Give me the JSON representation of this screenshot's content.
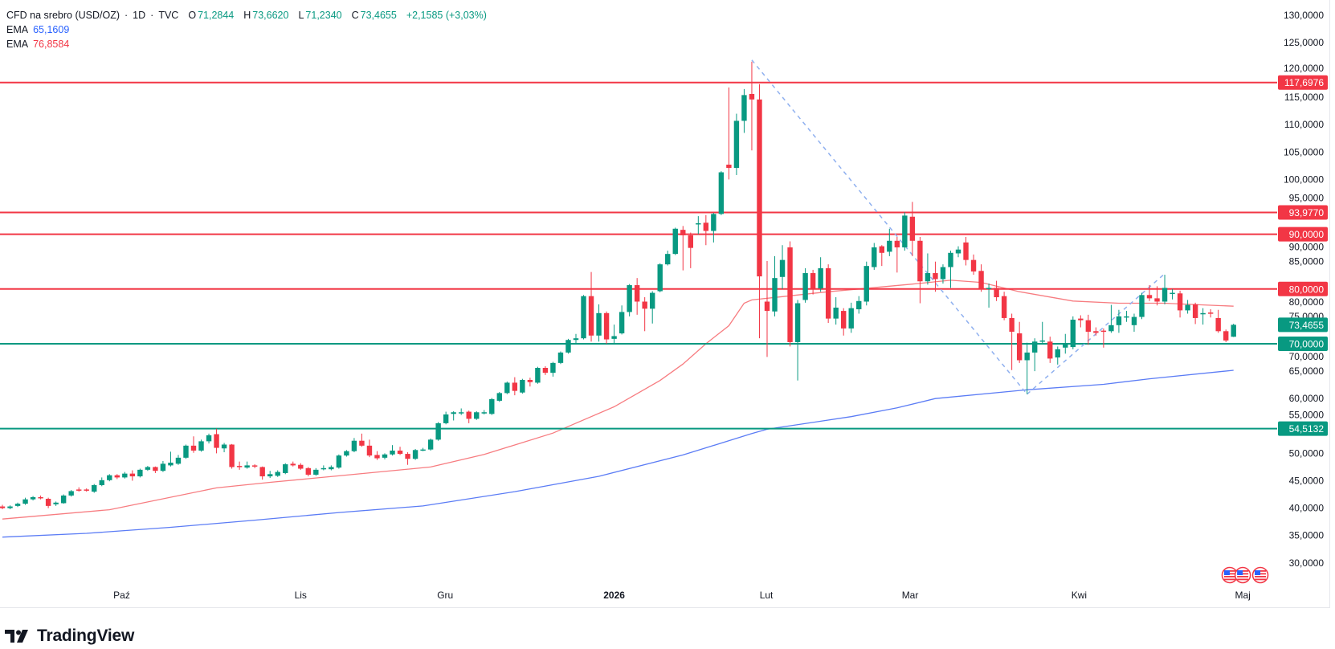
{
  "header": {
    "symbol": "CFD na srebro (USD/OZ)",
    "separator": "·",
    "interval": "1D",
    "exchange": "TVC",
    "ohlc": {
      "o_label": "O",
      "o": "71,2844",
      "h_label": "H",
      "h": "73,6620",
      "l_label": "L",
      "l": "71,2340",
      "c_label": "C",
      "c": "73,4655"
    },
    "change": "+2,1585 (+3,03%)"
  },
  "indicators": [
    {
      "name": "EMA",
      "value": "65,1609",
      "color": "#2962ff"
    },
    {
      "name": "EMA",
      "value": "76,8584",
      "color": "#f23645"
    }
  ],
  "branding": {
    "logo_text": "TradingView"
  },
  "chart_data": {
    "type": "candlestick",
    "title": "CFD na srebro (USD/OZ) · 1D · TVC",
    "colors": {
      "up": "#089981",
      "down": "#f23645",
      "ema_short": "#f77c80",
      "ema_long": "#5b7cf5",
      "trendline": "#8fb0ef",
      "resistance": "#f23645",
      "support": "#089981"
    },
    "y_axis": {
      "min": 30,
      "max": 130,
      "step": 5,
      "position": "right",
      "tick_values": [
        130,
        125,
        120,
        115,
        110,
        105,
        100,
        95,
        90,
        85,
        80,
        75,
        70,
        65,
        60,
        55,
        50,
        45,
        40,
        35,
        30
      ],
      "tick_labels": [
        "130,0000",
        "125,0000",
        "120,0000",
        "115,0000",
        "110,0000",
        "105,0000",
        "100,0000",
        "95,0000",
        "90,0000",
        "85,0000",
        "80,0000",
        "75,0000",
        "70,0000",
        "65,0000",
        "60,0000",
        "55,0000",
        "50,0000",
        "45,0000",
        "40,0000",
        "35,0000",
        "30,0000"
      ]
    },
    "x_axis": {
      "labels": [
        {
          "text": "Paź",
          "bar": 15.6,
          "bold": false
        },
        {
          "text": "Lis",
          "bar": 39,
          "bold": false
        },
        {
          "text": "Gru",
          "bar": 57.9,
          "bold": false
        },
        {
          "text": "2026",
          "bar": 80,
          "bold": true
        },
        {
          "text": "Lut",
          "bar": 99.9,
          "bold": false
        },
        {
          "text": "Mar",
          "bar": 118.7,
          "bold": false
        },
        {
          "text": "Kwi",
          "bar": 140.8,
          "bold": false
        },
        {
          "text": "Maj",
          "bar": 162.2,
          "bold": false
        }
      ]
    },
    "candles_ohlc": [
      [
        40.3,
        40.6,
        39.8,
        40.0
      ],
      [
        40.0,
        40.5,
        39.8,
        40.3
      ],
      [
        40.4,
        41.0,
        40.2,
        40.8
      ],
      [
        40.8,
        41.9,
        40.6,
        41.6
      ],
      [
        41.6,
        42.2,
        41.4,
        42.0
      ],
      [
        42.0,
        42.3,
        41.6,
        41.9
      ],
      [
        41.7,
        41.9,
        40.0,
        40.4
      ],
      [
        40.7,
        41.2,
        40.4,
        41.0
      ],
      [
        40.9,
        42.5,
        40.8,
        42.3
      ],
      [
        42.3,
        43.3,
        42.1,
        43.1
      ],
      [
        43.4,
        43.8,
        43.0,
        43.3
      ],
      [
        43.4,
        43.6,
        43.0,
        43.3
      ],
      [
        43.0,
        44.4,
        42.8,
        44.2
      ],
      [
        44.2,
        45.6,
        44.0,
        45.1
      ],
      [
        45.1,
        46.2,
        44.9,
        46.0
      ],
      [
        46.0,
        46.2,
        45.3,
        45.6
      ],
      [
        45.6,
        46.6,
        45.4,
        46.3
      ],
      [
        46.3,
        46.9,
        45.0,
        45.8
      ],
      [
        45.8,
        47.2,
        45.6,
        47.0
      ],
      [
        47.0,
        47.7,
        46.8,
        47.5
      ],
      [
        47.5,
        47.6,
        46.4,
        46.8
      ],
      [
        46.8,
        48.6,
        46.6,
        48.1
      ],
      [
        47.8,
        50.3,
        47.6,
        48.3
      ],
      [
        48.1,
        49.7,
        47.9,
        49.2
      ],
      [
        49.2,
        51.6,
        49.0,
        51.4
      ],
      [
        51.4,
        53.1,
        50.1,
        50.5
      ],
      [
        50.5,
        52.5,
        50.3,
        52.2
      ],
      [
        52.2,
        53.6,
        51.8,
        53.3
      ],
      [
        53.5,
        54.5,
        50.0,
        51.0
      ],
      [
        50.9,
        51.9,
        50.2,
        51.6
      ],
      [
        51.6,
        51.7,
        47.2,
        47.5
      ],
      [
        47.7,
        48.5,
        47.0,
        47.6
      ],
      [
        47.4,
        48.5,
        47.2,
        47.8
      ],
      [
        47.8,
        48.0,
        47.3,
        47.7
      ],
      [
        47.5,
        47.6,
        45.2,
        45.8
      ],
      [
        45.8,
        46.8,
        45.5,
        46.2
      ],
      [
        45.9,
        46.9,
        45.7,
        46.6
      ],
      [
        46.4,
        48.2,
        46.2,
        48.0
      ],
      [
        48.1,
        48.5,
        47.6,
        47.8
      ],
      [
        47.9,
        48.2,
        47.0,
        47.2
      ],
      [
        47.3,
        47.5,
        45.8,
        46.1
      ],
      [
        46.1,
        47.3,
        45.9,
        47.0
      ],
      [
        47.1,
        47.8,
        46.9,
        47.3
      ],
      [
        47.1,
        47.8,
        46.9,
        47.5
      ],
      [
        47.4,
        49.8,
        47.2,
        49.6
      ],
      [
        49.6,
        50.6,
        49.4,
        50.4
      ],
      [
        50.4,
        52.8,
        50.2,
        52.3
      ],
      [
        52.3,
        53.6,
        51.2,
        51.4
      ],
      [
        51.4,
        52.5,
        49.3,
        49.6
      ],
      [
        49.7,
        50.4,
        48.8,
        49.1
      ],
      [
        49.2,
        50.0,
        48.9,
        49.8
      ],
      [
        49.8,
        51.5,
        49.6,
        50.5
      ],
      [
        50.5,
        51.2,
        49.7,
        49.9
      ],
      [
        49.9,
        50.2,
        47.9,
        49.0
      ],
      [
        49.0,
        50.8,
        48.8,
        50.6
      ],
      [
        50.6,
        51.0,
        50.4,
        50.7
      ],
      [
        50.7,
        52.7,
        50.5,
        52.5
      ],
      [
        52.5,
        55.7,
        52.3,
        55.5
      ],
      [
        55.5,
        57.6,
        55.3,
        57.1
      ],
      [
        57.2,
        57.7,
        56.0,
        57.5
      ],
      [
        57.5,
        58.2,
        57.0,
        57.5
      ],
      [
        57.6,
        57.8,
        55.5,
        56.3
      ],
      [
        56.3,
        57.7,
        56.1,
        57.5
      ],
      [
        57.5,
        57.9,
        57.1,
        57.5
      ],
      [
        57.2,
        60.1,
        57.0,
        59.9
      ],
      [
        59.6,
        61.2,
        59.4,
        61.0
      ],
      [
        61.0,
        63.1,
        60.8,
        62.9
      ],
      [
        62.9,
        63.9,
        60.6,
        61.4
      ],
      [
        61.1,
        63.6,
        60.9,
        63.4
      ],
      [
        63.4,
        63.8,
        62.2,
        63.0
      ],
      [
        62.9,
        65.8,
        62.7,
        65.6
      ],
      [
        65.6,
        65.9,
        64.3,
        64.7
      ],
      [
        64.7,
        66.7,
        64.0,
        66.5
      ],
      [
        66.5,
        68.6,
        66.3,
        68.4
      ],
      [
        68.4,
        70.9,
        68.2,
        70.7
      ],
      [
        70.7,
        71.8,
        70.0,
        71.0
      ],
      [
        71.0,
        78.9,
        70.8,
        78.7
      ],
      [
        78.7,
        83.1,
        70.4,
        71.5
      ],
      [
        71.5,
        77.2,
        70.4,
        75.6
      ],
      [
        75.6,
        75.9,
        70.0,
        70.8
      ],
      [
        70.9,
        73.5,
        70.0,
        71.4
      ],
      [
        71.9,
        77.0,
        71.7,
        75.8
      ],
      [
        75.8,
        80.9,
        75.0,
        80.7
      ],
      [
        80.7,
        82.0,
        75.3,
        77.7
      ],
      [
        77.7,
        78.5,
        72.3,
        76.4
      ],
      [
        76.4,
        79.6,
        73.7,
        79.3
      ],
      [
        79.6,
        84.7,
        79.4,
        84.5
      ],
      [
        84.5,
        87.0,
        84.3,
        86.4
      ],
      [
        86.4,
        91.2,
        86.2,
        91.0
      ],
      [
        90.8,
        91.5,
        83.4,
        89.8
      ],
      [
        89.8,
        90.3,
        83.8,
        87.5
      ],
      [
        91.8,
        93.3,
        90.0,
        92.0
      ],
      [
        92.1,
        93.5,
        88.0,
        90.6
      ],
      [
        90.6,
        93.9,
        88.5,
        93.7
      ],
      [
        93.7,
        101.5,
        93.5,
        101.3
      ],
      [
        102.7,
        116.8,
        100.0,
        102.1
      ],
      [
        102.1,
        112.0,
        100.8,
        110.7
      ],
      [
        110.7,
        116.5,
        108.5,
        115.4
      ],
      [
        115.6,
        121.5,
        105.3,
        114.6
      ],
      [
        114.6,
        117.4,
        71.0,
        82.3
      ],
      [
        77.7,
        85.1,
        67.6,
        76.0
      ],
      [
        75.9,
        86.0,
        75.0,
        82.0
      ],
      [
        82.2,
        88.0,
        80.0,
        85.3
      ],
      [
        87.6,
        88.7,
        69.5,
        70.3
      ],
      [
        70.3,
        78.0,
        63.3,
        77.4
      ],
      [
        78.0,
        83.8,
        77.5,
        82.9
      ],
      [
        82.9,
        83.5,
        79.0,
        80.1
      ],
      [
        80.1,
        85.8,
        79.5,
        83.8
      ],
      [
        83.8,
        84.5,
        73.8,
        74.6
      ],
      [
        74.6,
        78.5,
        73.5,
        76.6
      ],
      [
        76.0,
        76.5,
        71.5,
        72.8
      ],
      [
        72.8,
        77.5,
        72.0,
        76.5
      ],
      [
        76.3,
        78.7,
        75.5,
        77.8
      ],
      [
        77.7,
        85.0,
        77.0,
        84.2
      ],
      [
        84.0,
        88.4,
        83.5,
        87.6
      ],
      [
        87.8,
        88.0,
        84.2,
        86.6
      ],
      [
        86.8,
        91.0,
        86.0,
        88.8
      ],
      [
        88.8,
        89.5,
        83.0,
        87.6
      ],
      [
        87.6,
        94.0,
        87.0,
        93.4
      ],
      [
        93.2,
        95.9,
        86.0,
        88.8
      ],
      [
        88.8,
        89.5,
        77.4,
        81.4
      ],
      [
        81.4,
        86.5,
        80.8,
        82.9
      ],
      [
        82.9,
        85.0,
        79.5,
        81.8
      ],
      [
        81.8,
        84.5,
        81.0,
        84.0
      ],
      [
        84.0,
        87.0,
        80.2,
        86.6
      ],
      [
        86.5,
        87.8,
        85.8,
        87.2
      ],
      [
        88.5,
        89.5,
        84.3,
        85.3
      ],
      [
        85.3,
        86.3,
        82.6,
        83.2
      ],
      [
        83.3,
        84.5,
        79.5,
        80.1
      ],
      [
        80.0,
        81.0,
        76.6,
        80.2
      ],
      [
        80.2,
        81.5,
        77.8,
        78.5
      ],
      [
        78.7,
        79.5,
        74.3,
        74.7
      ],
      [
        74.7,
        75.5,
        65.2,
        72.2
      ],
      [
        71.9,
        74.0,
        66.5,
        67.0
      ],
      [
        67.0,
        70.2,
        60.8,
        68.4
      ],
      [
        68.4,
        71.0,
        65.0,
        70.4
      ],
      [
        70.4,
        74.0,
        70.0,
        70.6
      ],
      [
        70.4,
        71.3,
        66.5,
        67.3
      ],
      [
        67.5,
        69.5,
        66.2,
        69.0
      ],
      [
        69.3,
        71.8,
        68.2,
        69.9
      ],
      [
        69.4,
        75.0,
        69.0,
        74.4
      ],
      [
        74.6,
        75.2,
        73.0,
        74.3
      ],
      [
        74.3,
        75.3,
        69.8,
        72.2
      ],
      [
        72.3,
        73.0,
        71.5,
        72.0
      ],
      [
        72.4,
        72.8,
        69.3,
        72.2
      ],
      [
        72.3,
        77.1,
        72.0,
        73.4
      ],
      [
        73.4,
        76.2,
        72.0,
        75.0
      ],
      [
        74.9,
        76.0,
        74.0,
        75.0
      ],
      [
        73.4,
        75.5,
        72.2,
        74.9
      ],
      [
        74.9,
        79.3,
        74.5,
        78.9
      ],
      [
        78.9,
        80.7,
        77.8,
        78.3
      ],
      [
        78.3,
        80.5,
        77.0,
        77.7
      ],
      [
        77.7,
        82.6,
        77.2,
        80.2
      ],
      [
        79.2,
        80.0,
        78.1,
        79.3
      ],
      [
        79.2,
        79.7,
        74.8,
        76.1
      ],
      [
        76.1,
        78.0,
        75.5,
        77.1
      ],
      [
        77.2,
        77.5,
        73.6,
        74.7
      ],
      [
        75.5,
        76.5,
        73.5,
        75.6
      ],
      [
        75.7,
        76.3,
        74.8,
        75.6
      ],
      [
        74.7,
        76.2,
        72.0,
        72.3
      ],
      [
        72.3,
        72.6,
        70.3,
        70.6
      ],
      [
        71.2844,
        73.662,
        71.234,
        73.4655
      ]
    ],
    "ema_series": [
      {
        "label": "EMA",
        "value_label": "65,1609",
        "color": "#5b7cf5",
        "points": [
          [
            0,
            34.7
          ],
          [
            11,
            35.4
          ],
          [
            22,
            36.5
          ],
          [
            33,
            37.8
          ],
          [
            44,
            39.2
          ],
          [
            55,
            40.4
          ],
          [
            67,
            43.0
          ],
          [
            78,
            45.8
          ],
          [
            89,
            49.7
          ],
          [
            98,
            53.6
          ],
          [
            100,
            54.4
          ],
          [
            111,
            56.7
          ],
          [
            117,
            58.3
          ],
          [
            122,
            60.0
          ],
          [
            134,
            61.6
          ],
          [
            144,
            62.6
          ],
          [
            150,
            63.6
          ],
          [
            161,
            65.1609
          ]
        ]
      },
      {
        "label": "EMA",
        "value_label": "76,8584",
        "color": "#f77c80",
        "points": [
          [
            0,
            38.0
          ],
          [
            14,
            39.7
          ],
          [
            28,
            43.7
          ],
          [
            35,
            44.7
          ],
          [
            44,
            45.9
          ],
          [
            56,
            47.5
          ],
          [
            63,
            49.8
          ],
          [
            72,
            53.7
          ],
          [
            80,
            58.5
          ],
          [
            86,
            63.3
          ],
          [
            89,
            66.3
          ],
          [
            92,
            70.0
          ],
          [
            95,
            73.3
          ],
          [
            97,
            77.4
          ],
          [
            98,
            78.0
          ],
          [
            102,
            78.6
          ],
          [
            108,
            79.5
          ],
          [
            112,
            80.0
          ],
          [
            119,
            80.9
          ],
          [
            124,
            81.6
          ],
          [
            128,
            81.2
          ],
          [
            133,
            79.5
          ],
          [
            140,
            77.8
          ],
          [
            146,
            77.4
          ],
          [
            152,
            77.4
          ],
          [
            157,
            77.1
          ],
          [
            161,
            76.8584
          ]
        ]
      }
    ],
    "horizontal_levels": [
      {
        "value": 117.6976,
        "label": "117,6976",
        "kind": "resistance"
      },
      {
        "value": 93.977,
        "label": "93,9770",
        "kind": "resistance"
      },
      {
        "value": 90.0,
        "label": "90,0000",
        "kind": "resistance"
      },
      {
        "value": 80.0,
        "label": "80,0000",
        "kind": "resistance"
      },
      {
        "value": 70.0,
        "label": "70,0000",
        "kind": "support"
      },
      {
        "value": 54.5132,
        "label": "54,5132",
        "kind": "support"
      }
    ],
    "trendlines": [
      {
        "from": [
          98,
          121.8
        ],
        "to": [
          134,
          60.8
        ],
        "style": "dashed"
      },
      {
        "from": [
          134,
          60.8
        ],
        "to": [
          152,
          82.8
        ],
        "style": "dashed"
      }
    ],
    "last_price": {
      "value": 73.4655,
      "label": "73,4655"
    },
    "event_markers": [
      {
        "icon": "us-flag-icon",
        "bar": 160.5
      },
      {
        "icon": "us-flag-icon",
        "bar": 162.2
      },
      {
        "icon": "us-flag-icon",
        "bar": 164.5
      }
    ]
  }
}
